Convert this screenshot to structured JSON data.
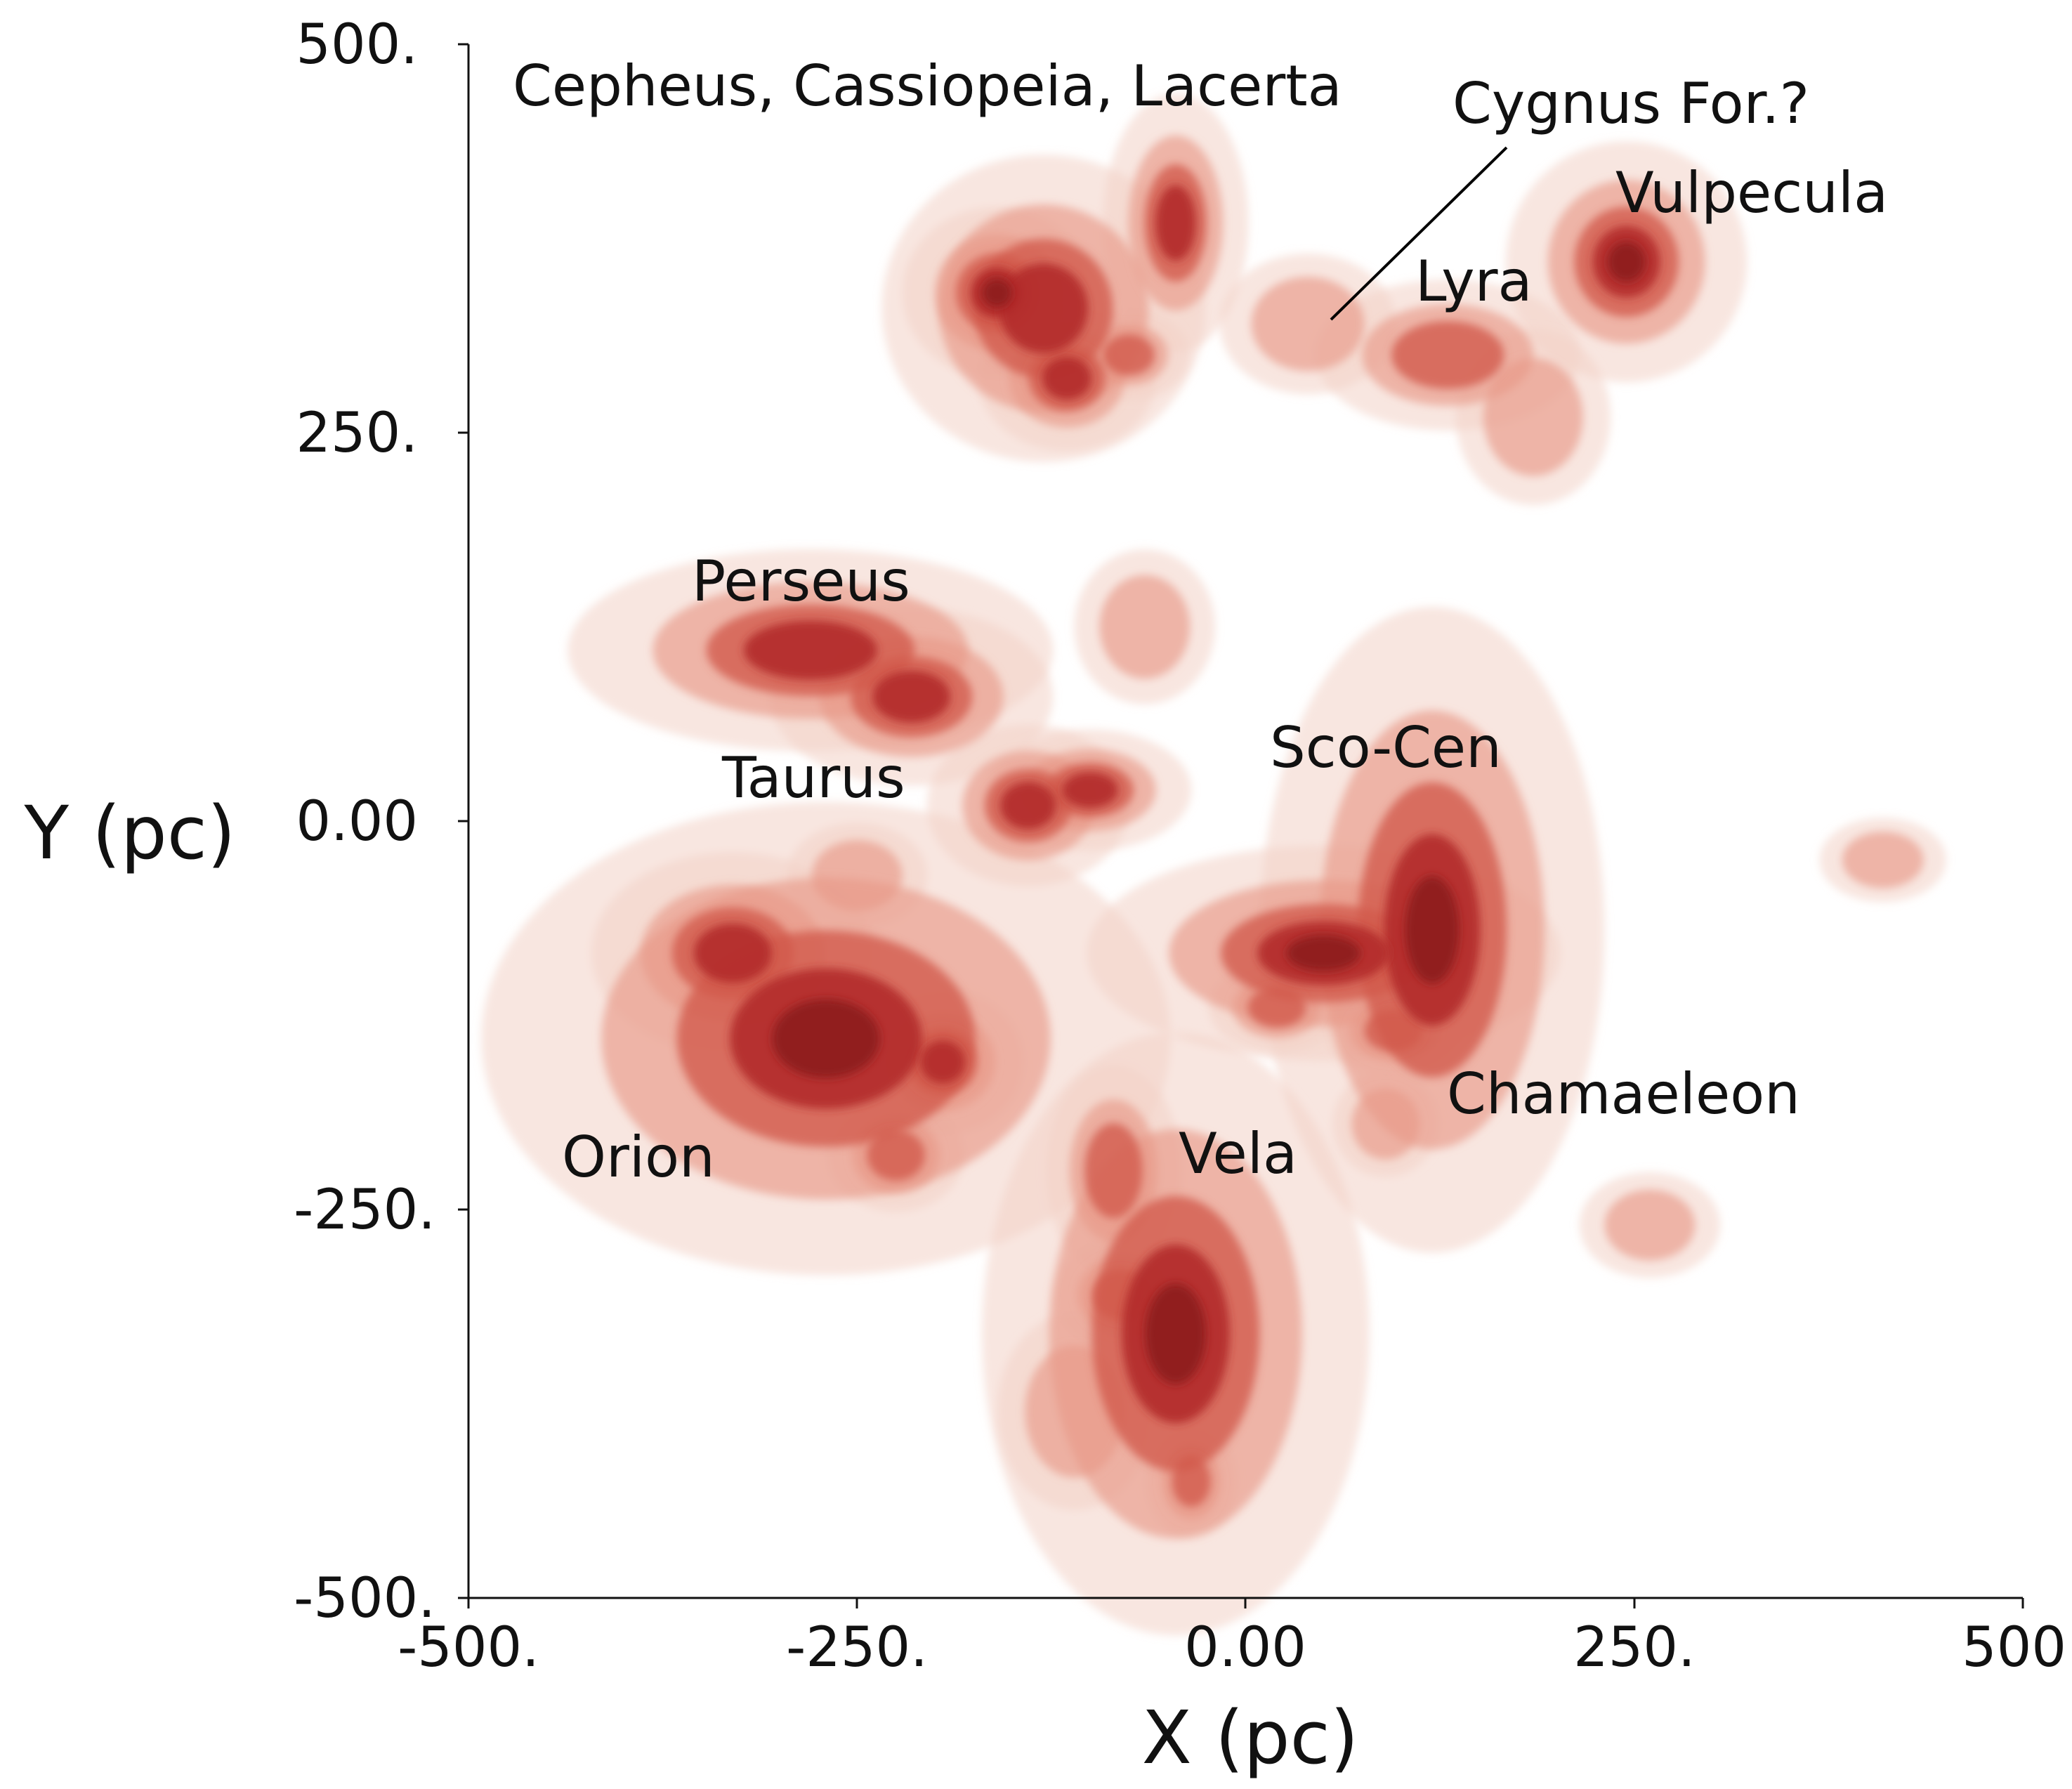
{
  "chart_data": {
    "type": "heatmap",
    "title": "",
    "xlabel": "X (pc)",
    "ylabel": "Y (pc)",
    "xlim": [
      -500,
      500
    ],
    "ylim": [
      -500,
      500
    ],
    "x_ticks": [
      "-500.",
      "-250.",
      "0.00",
      "250.",
      "500."
    ],
    "y_ticks": [
      "500.",
      "250.",
      "0.00",
      "-250.",
      "-500."
    ],
    "grid": false,
    "colors": {
      "faint": "#f2d2c6",
      "light": "#e89a88",
      "medium": "#d2584c",
      "strong": "#b22a2a",
      "core": "#8e1b1e"
    },
    "regions": [
      {
        "name": "Cepheus, Cassiopeia, Lacerta",
        "x": -130,
        "y": 340
      },
      {
        "name": "Cygnus For.?",
        "x": 50,
        "y": 320
      },
      {
        "name": "Lyra",
        "x": 130,
        "y": 300
      },
      {
        "name": "Vulpecula",
        "x": 245,
        "y": 360
      },
      {
        "name": "Perseus",
        "x": -280,
        "y": 95
      },
      {
        "name": "Taurus",
        "x": -130,
        "y": 10
      },
      {
        "name": "Sco-Cen",
        "x": 110,
        "y": -60
      },
      {
        "name": "Orion",
        "x": -270,
        "y": -130
      },
      {
        "name": "Vela",
        "x": -45,
        "y": -330
      },
      {
        "name": "Chamaeleon",
        "x": 120,
        "y": -210
      }
    ],
    "clouds": [
      {
        "x": -160,
        "y": 340,
        "rx": 22,
        "ry": 20,
        "level": 5
      },
      {
        "x": -130,
        "y": 330,
        "rx": 40,
        "ry": 38,
        "level": 4
      },
      {
        "x": -115,
        "y": 285,
        "rx": 22,
        "ry": 18,
        "level": 4
      },
      {
        "x": -45,
        "y": 385,
        "rx": 18,
        "ry": 32,
        "level": 4
      },
      {
        "x": -75,
        "y": 300,
        "rx": 16,
        "ry": 12,
        "level": 3
      },
      {
        "x": 40,
        "y": 320,
        "rx": 25,
        "ry": 20,
        "level": 2
      },
      {
        "x": 130,
        "y": 300,
        "rx": 35,
        "ry": 20,
        "level": 3
      },
      {
        "x": 245,
        "y": 360,
        "rx": 28,
        "ry": 28,
        "level": 5
      },
      {
        "x": 185,
        "y": 260,
        "rx": 22,
        "ry": 25,
        "level": 2
      },
      {
        "x": -280,
        "y": 110,
        "rx": 60,
        "ry": 25,
        "level": 4
      },
      {
        "x": -215,
        "y": 80,
        "rx": 35,
        "ry": 22,
        "level": 4
      },
      {
        "x": -65,
        "y": 125,
        "rx": 20,
        "ry": 22,
        "level": 2
      },
      {
        "x": -140,
        "y": 10,
        "rx": 25,
        "ry": 20,
        "level": 4
      },
      {
        "x": -100,
        "y": 20,
        "rx": 25,
        "ry": 15,
        "level": 4
      },
      {
        "x": -250,
        "y": -35,
        "rx": 20,
        "ry": 15,
        "level": 2
      },
      {
        "x": 120,
        "y": -70,
        "rx": 40,
        "ry": 75,
        "level": 5
      },
      {
        "x": 50,
        "y": -85,
        "rx": 55,
        "ry": 25,
        "level": 5
      },
      {
        "x": 20,
        "y": -120,
        "rx": 18,
        "ry": 12,
        "level": 3
      },
      {
        "x": 95,
        "y": -135,
        "rx": 18,
        "ry": 12,
        "level": 3
      },
      {
        "x": -330,
        "y": -85,
        "rx": 35,
        "ry": 25,
        "level": 4
      },
      {
        "x": -270,
        "y": -140,
        "rx": 80,
        "ry": 55,
        "level": 5
      },
      {
        "x": -195,
        "y": -155,
        "rx": 20,
        "ry": 18,
        "level": 4
      },
      {
        "x": -225,
        "y": -215,
        "rx": 18,
        "ry": 15,
        "level": 3
      },
      {
        "x": -85,
        "y": -225,
        "rx": 18,
        "ry": 28,
        "level": 3
      },
      {
        "x": -45,
        "y": -330,
        "rx": 45,
        "ry": 70,
        "level": 5
      },
      {
        "x": -80,
        "y": -305,
        "rx": 18,
        "ry": 15,
        "level": 3
      },
      {
        "x": -110,
        "y": -380,
        "rx": 22,
        "ry": 28,
        "level": 2
      },
      {
        "x": -35,
        "y": -425,
        "rx": 12,
        "ry": 15,
        "level": 3
      },
      {
        "x": 90,
        "y": -195,
        "rx": 15,
        "ry": 15,
        "level": 2
      },
      {
        "x": 260,
        "y": -260,
        "rx": 20,
        "ry": 15,
        "level": 2
      },
      {
        "x": 410,
        "y": -25,
        "rx": 18,
        "ry": 12,
        "level": 2
      }
    ]
  }
}
